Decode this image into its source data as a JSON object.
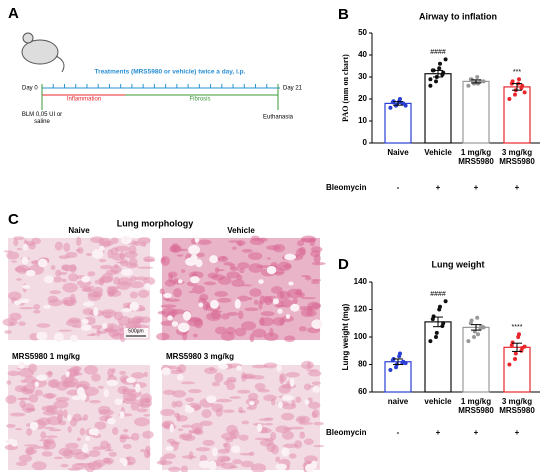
{
  "diagram": {
    "label": "A",
    "treatments": "Treatments (MRS5980 or vehicle) twice a day, i.p.",
    "day_start": "Day 0",
    "day_end": "Day 21",
    "inflammation": "Inflammation",
    "fibrosis": "Fibrosis",
    "start_event": "BLM 0,05 UI or saline",
    "end_event": "Euthanasia"
  },
  "morphology": {
    "label": "C",
    "title": "Lung morphology",
    "panels": [
      "Naive",
      "Vehicle",
      "MRS5980  1 mg/kg",
      "MRS5980  3 mg/kg"
    ],
    "scale_bar": "500µm"
  },
  "chart_data": [
    {
      "type": "bar",
      "panel": "B",
      "title": "Airway to inflation",
      "ylabel": "PAO (mm on chart)",
      "categories": [
        "Naive",
        "Vehicle",
        "1 mg/kg MRS5980",
        "3 mg/kg MRS5980"
      ],
      "values": [
        18,
        31.5,
        28,
        25.5
      ],
      "errors": [
        0.8,
        1.5,
        0.7,
        1.5
      ],
      "points": [
        [
          16,
          17,
          17.5,
          18,
          18,
          18.5,
          19,
          19,
          20,
          17
        ],
        [
          26,
          28,
          30,
          31,
          32,
          33,
          33,
          34,
          36,
          38,
          29
        ],
        [
          26,
          27,
          27.5,
          28,
          28,
          29,
          29,
          30,
          27,
          28
        ],
        [
          20,
          22,
          24,
          25,
          26,
          27,
          28,
          27,
          29,
          23
        ]
      ],
      "colors": [
        "#2a3fd4",
        "#111111",
        "#999999",
        "#e8262c"
      ],
      "annotations": [
        null,
        "####",
        null,
        "***"
      ],
      "group_row": {
        "label": "Bleomycin",
        "values": [
          "-",
          "+",
          "+",
          "+"
        ]
      },
      "ylim": [
        0,
        50
      ],
      "yticks": [
        0,
        10,
        20,
        30,
        40,
        50
      ]
    },
    {
      "type": "bar",
      "panel": "D",
      "title": "Lung weight",
      "ylabel": "Lung weight (mg)",
      "categories": [
        "naive",
        "vehicle",
        "1 mg/kg MRS5980",
        "3 mg/kg MRS5980"
      ],
      "values": [
        82,
        111,
        107,
        92.5
      ],
      "errors": [
        2,
        3.5,
        2,
        3
      ],
      "points": [
        [
          76,
          78,
          80,
          81,
          82,
          83,
          84,
          86,
          88,
          81
        ],
        [
          97,
          100,
          103,
          108,
          110,
          113,
          115,
          120,
          122,
          126
        ],
        [
          97,
          100,
          104,
          106,
          108,
          110,
          112,
          114,
          102,
          107
        ],
        [
          80,
          84,
          88,
          90,
          92,
          94,
          96,
          100,
          102,
          93
        ]
      ],
      "colors": [
        "#2a3fd4",
        "#111111",
        "#999999",
        "#e8262c"
      ],
      "annotations": [
        null,
        "####",
        null,
        "****"
      ],
      "group_row": {
        "label": "Bleomycin",
        "values": [
          "-",
          "+",
          "+",
          "+"
        ]
      },
      "ylim": [
        60,
        140
      ],
      "yticks": [
        60,
        80,
        100,
        120,
        140
      ]
    }
  ]
}
